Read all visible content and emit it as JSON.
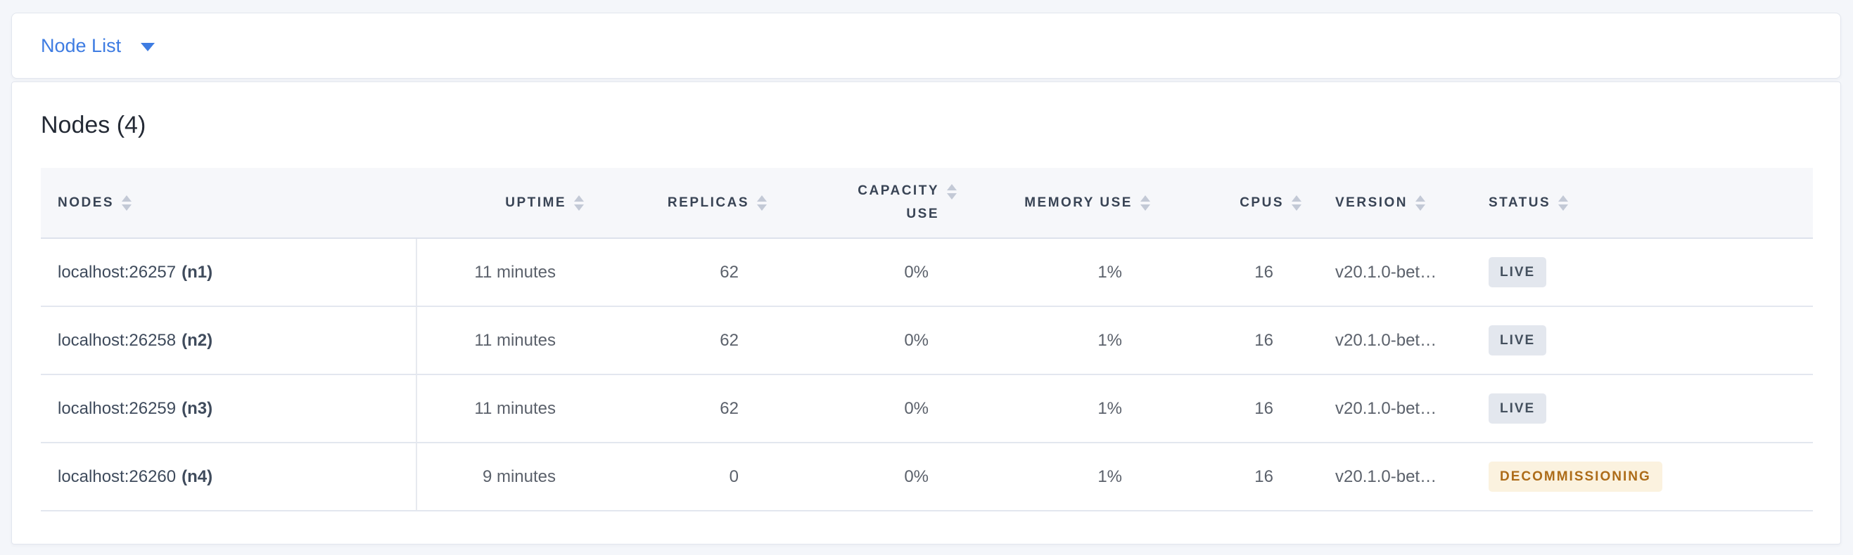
{
  "view_selector": {
    "label": "Node List",
    "caret_icon": "caret-down"
  },
  "summary": {
    "title": "Nodes (4)"
  },
  "table": {
    "columns": [
      {
        "key": "nodes",
        "label": "Nodes",
        "align": "left"
      },
      {
        "key": "uptime",
        "label": "Uptime",
        "align": "right"
      },
      {
        "key": "replicas",
        "label": "Replicas",
        "align": "right"
      },
      {
        "key": "capacity_use",
        "label": "Capacity Use",
        "align": "right"
      },
      {
        "key": "memory_use",
        "label": "Memory Use",
        "align": "right"
      },
      {
        "key": "cpus",
        "label": "CPUs",
        "align": "right"
      },
      {
        "key": "version",
        "label": "Version",
        "align": "left"
      },
      {
        "key": "status",
        "label": "Status",
        "align": "left"
      }
    ],
    "rows": [
      {
        "address": "localhost:26257",
        "node_id": "(n1)",
        "uptime": "11 minutes",
        "replicas": "62",
        "capacity_use": "0%",
        "memory_use": "1%",
        "cpus": "16",
        "version": "v20.1.0-bet…",
        "status": "Live",
        "badge_class": "badge badge-live"
      },
      {
        "address": "localhost:26258",
        "node_id": "(n2)",
        "uptime": "11 minutes",
        "replicas": "62",
        "capacity_use": "0%",
        "memory_use": "1%",
        "cpus": "16",
        "version": "v20.1.0-bet…",
        "status": "Live",
        "badge_class": "badge badge-live"
      },
      {
        "address": "localhost:26259",
        "node_id": "(n3)",
        "uptime": "11 minutes",
        "replicas": "62",
        "capacity_use": "0%",
        "memory_use": "1%",
        "cpus": "16",
        "version": "v20.1.0-bet…",
        "status": "Live",
        "badge_class": "badge badge-live"
      },
      {
        "address": "localhost:26260",
        "node_id": "(n4)",
        "uptime": "9 minutes",
        "replicas": "0",
        "capacity_use": "0%",
        "memory_use": "1%",
        "cpus": "16",
        "version": "v20.1.0-bet…",
        "status": "Decommissioning",
        "badge_class": "badge badge-decommissioning"
      }
    ]
  },
  "colors": {
    "page_background": "#f4f6fa",
    "card_background": "#ffffff",
    "accent_blue": "#3e7ce2",
    "header_text": "#394455",
    "cell_text": "#5b616b",
    "node_text": "#3f4b5c",
    "badge_live_bg": "#e3e7ee",
    "badge_live_text": "#44505e",
    "badge_decommissioning_bg": "#fbf2df",
    "badge_decommissioning_text": "#ad6c19",
    "sort_arrow": "#c3c9d6",
    "row_border": "#e3e7ef"
  }
}
